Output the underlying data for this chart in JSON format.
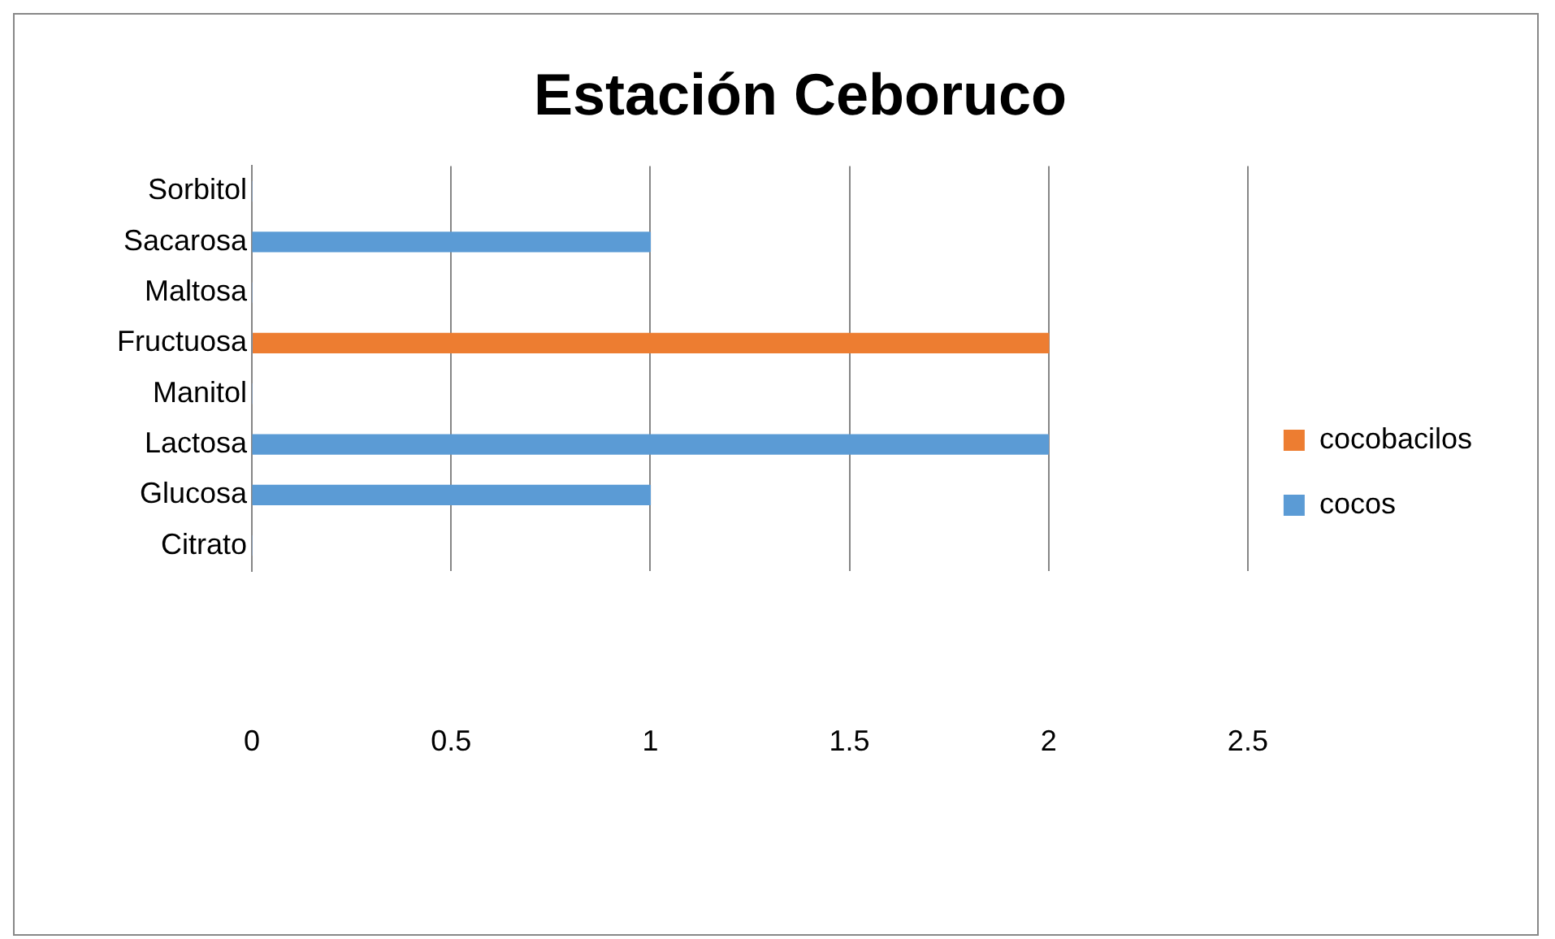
{
  "chart_data": {
    "type": "bar",
    "orientation": "horizontal",
    "stacked": true,
    "title": "Estación Ceboruco",
    "categories": [
      "Sorbitol",
      "Sacarosa",
      "Maltosa",
      "Fructuosa",
      "Manitol",
      "Lactosa",
      "Glucosa",
      "Citrato"
    ],
    "series": [
      {
        "name": "cocos",
        "color": "#5b9bd5",
        "values": [
          0,
          1,
          0,
          0,
          0,
          2,
          1,
          0
        ]
      },
      {
        "name": "cocobacilos",
        "color": "#ed7d31",
        "values": [
          0,
          0,
          0,
          2,
          0,
          0,
          0,
          0
        ]
      }
    ],
    "xlim": [
      0,
      2.5
    ],
    "xticks": [
      0,
      0.5,
      1,
      1.5,
      2,
      2.5
    ],
    "grid": "x",
    "legend": "right"
  }
}
